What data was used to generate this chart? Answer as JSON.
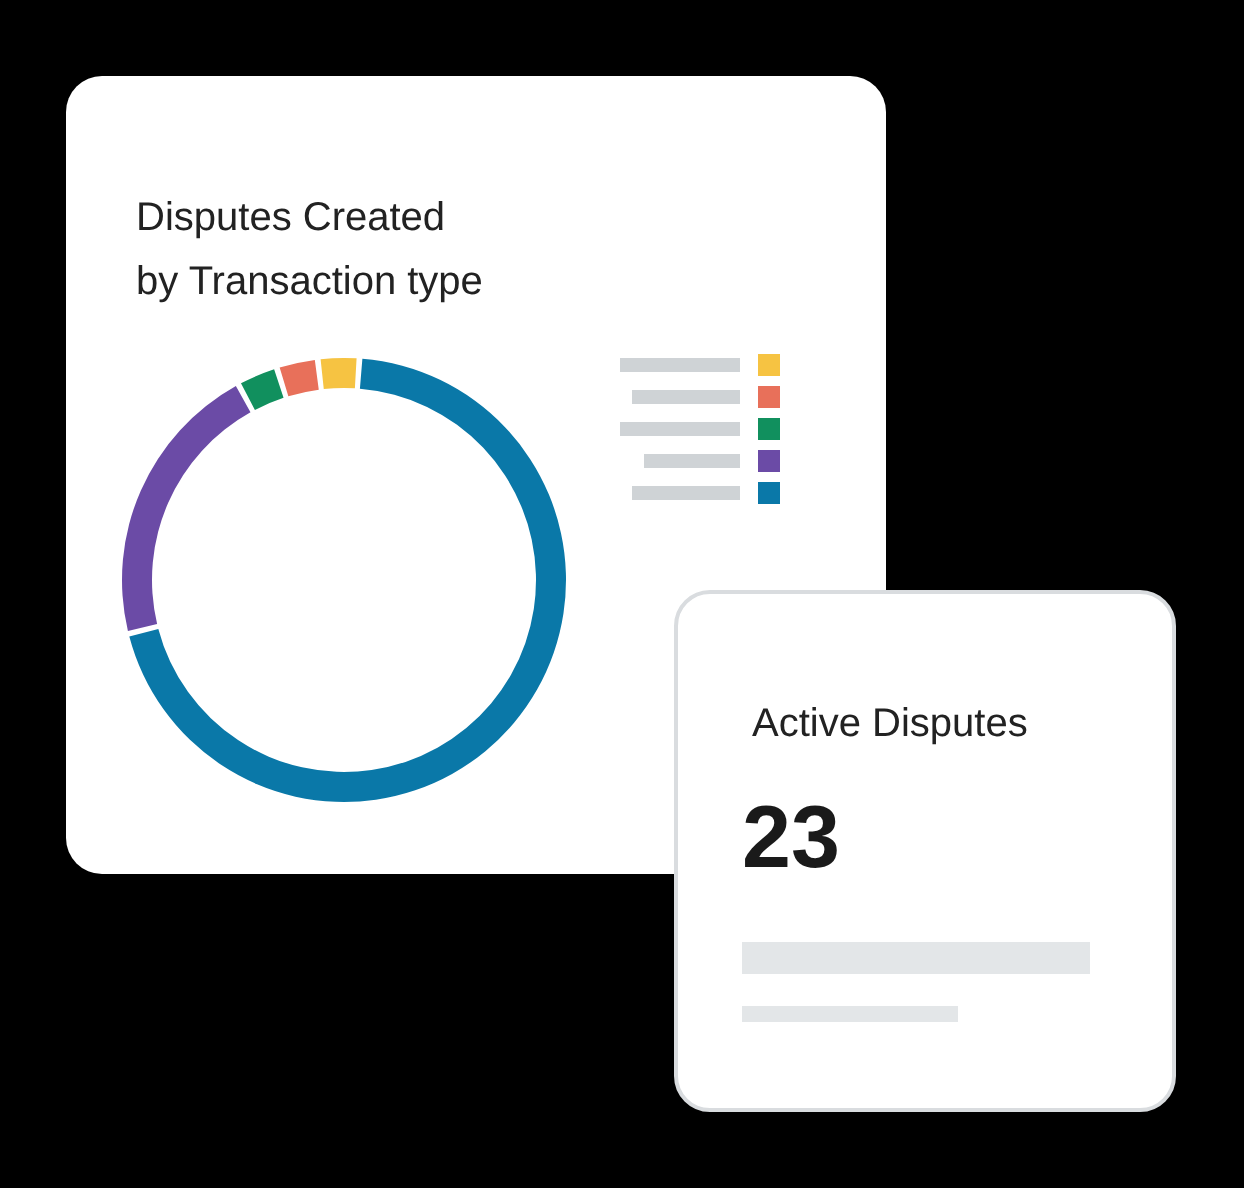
{
  "chart_data": [
    {
      "type": "donut",
      "title": "Disputes Created\nby Transaction type",
      "categories": [
        null,
        null,
        null,
        null,
        null
      ],
      "values": [
        70,
        21,
        3,
        3,
        3
      ],
      "colors": [
        "#0a78a8",
        "#6b4ba6",
        "#11905e",
        "#e8705a",
        "#f6c342"
      ]
    },
    {
      "type": "other",
      "title": "Active Disputes",
      "annotations": [
        "23"
      ]
    }
  ]
}
